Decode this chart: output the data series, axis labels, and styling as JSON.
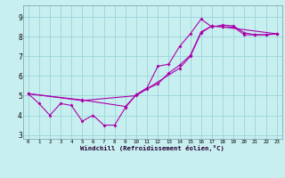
{
  "xlabel": "Windchill (Refroidissement éolien,°C)",
  "background_color": "#c8eff0",
  "line_color": "#aa00aa",
  "grid_color": "#a0d8dc",
  "xlim": [
    -0.5,
    23.5
  ],
  "ylim": [
    2.8,
    9.6
  ],
  "yticks": [
    3,
    4,
    5,
    6,
    7,
    8,
    9
  ],
  "xticks": [
    0,
    1,
    2,
    3,
    4,
    5,
    6,
    7,
    8,
    9,
    10,
    11,
    12,
    13,
    14,
    15,
    16,
    17,
    18,
    19,
    20,
    21,
    22,
    23
  ],
  "series1_x": [
    0,
    1,
    2,
    3,
    4,
    5,
    6,
    7,
    8,
    9,
    10,
    11,
    12,
    13,
    14,
    15,
    16,
    17,
    18,
    19,
    20,
    21,
    22,
    23
  ],
  "series1_y": [
    5.1,
    4.6,
    4.0,
    4.6,
    4.5,
    3.7,
    4.0,
    3.5,
    3.5,
    4.4,
    5.05,
    5.4,
    6.5,
    6.6,
    7.5,
    8.15,
    8.9,
    8.5,
    8.6,
    8.55,
    8.2,
    8.1,
    8.1,
    8.15
  ],
  "series2_x": [
    0,
    5,
    10,
    14,
    15,
    16,
    17,
    18,
    19,
    20,
    21,
    22,
    23
  ],
  "series2_y": [
    5.1,
    4.75,
    5.0,
    6.4,
    7.0,
    8.2,
    8.55,
    8.5,
    8.5,
    8.1,
    8.1,
    8.1,
    8.15
  ],
  "series3_x": [
    0,
    5,
    9,
    10,
    11,
    12,
    13,
    14,
    15,
    16,
    17,
    18,
    23
  ],
  "series3_y": [
    5.1,
    4.78,
    4.45,
    5.05,
    5.35,
    5.6,
    6.15,
    6.55,
    7.05,
    8.25,
    8.55,
    8.5,
    8.15
  ]
}
